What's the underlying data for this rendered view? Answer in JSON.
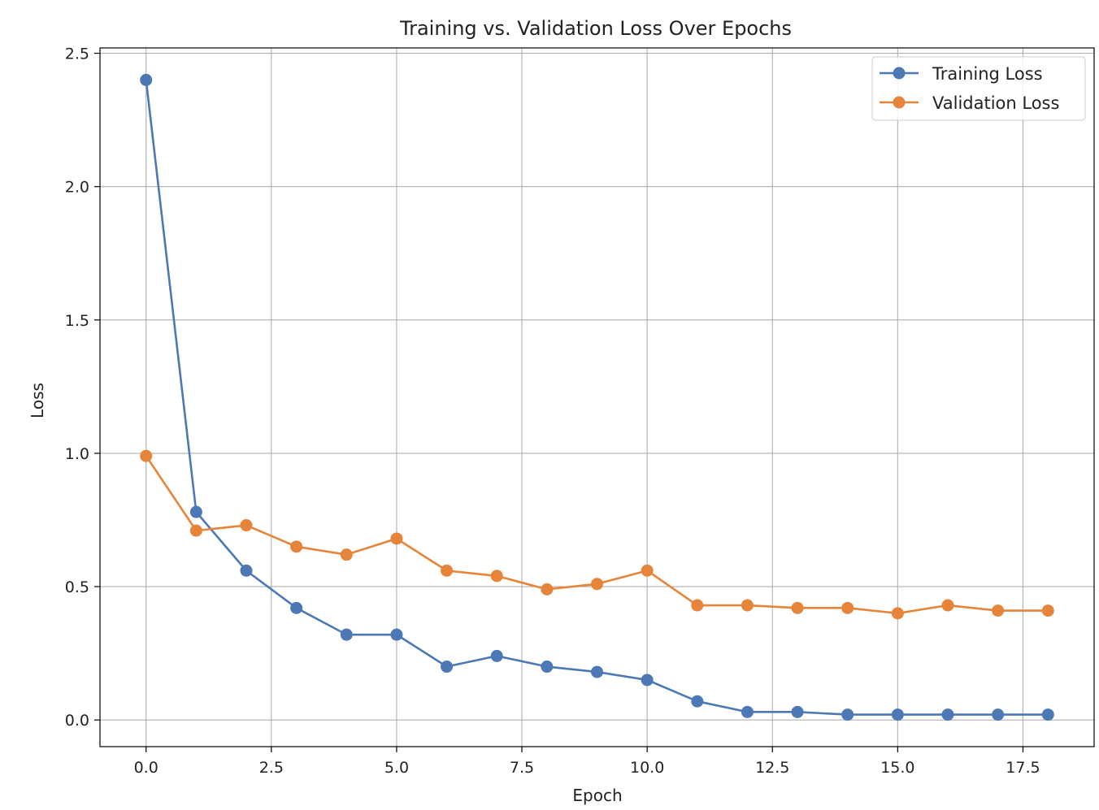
{
  "chart_data": {
    "type": "line",
    "title": "Training vs. Validation Loss Over Epochs",
    "xlabel": "Epoch",
    "ylabel": "Loss",
    "xlim": [
      -0.92,
      18.92
    ],
    "ylim": [
      -0.1,
      2.52
    ],
    "x_ticks": [
      0.0,
      2.5,
      5.0,
      7.5,
      10.0,
      12.5,
      15.0,
      17.5
    ],
    "x_tick_labels": [
      "0.0",
      "2.5",
      "5.0",
      "7.5",
      "10.0",
      "12.5",
      "15.0",
      "17.5"
    ],
    "y_ticks": [
      0.0,
      0.5,
      1.0,
      1.5,
      2.0,
      2.5
    ],
    "y_tick_labels": [
      "0.0",
      "0.5",
      "1.0",
      "1.5",
      "2.0",
      "2.5"
    ],
    "grid": true,
    "legend_position": "top-right",
    "x": [
      0,
      1,
      2,
      3,
      4,
      5,
      6,
      7,
      8,
      9,
      10,
      11,
      12,
      13,
      14,
      15,
      16,
      17,
      18
    ],
    "series": [
      {
        "name": "Training Loss",
        "color": "#4c78b5",
        "marker": "circle",
        "values": [
          2.4,
          0.78,
          0.56,
          0.42,
          0.32,
          0.32,
          0.2,
          0.24,
          0.2,
          0.18,
          0.15,
          0.07,
          0.03,
          0.03,
          0.02,
          0.02,
          0.02,
          0.02,
          0.02
        ]
      },
      {
        "name": "Validation Loss",
        "color": "#e6843a",
        "marker": "circle",
        "values": [
          0.99,
          0.71,
          0.73,
          0.65,
          0.62,
          0.68,
          0.56,
          0.54,
          0.49,
          0.51,
          0.56,
          0.43,
          0.43,
          0.42,
          0.42,
          0.4,
          0.43,
          0.41,
          0.41
        ]
      }
    ]
  }
}
